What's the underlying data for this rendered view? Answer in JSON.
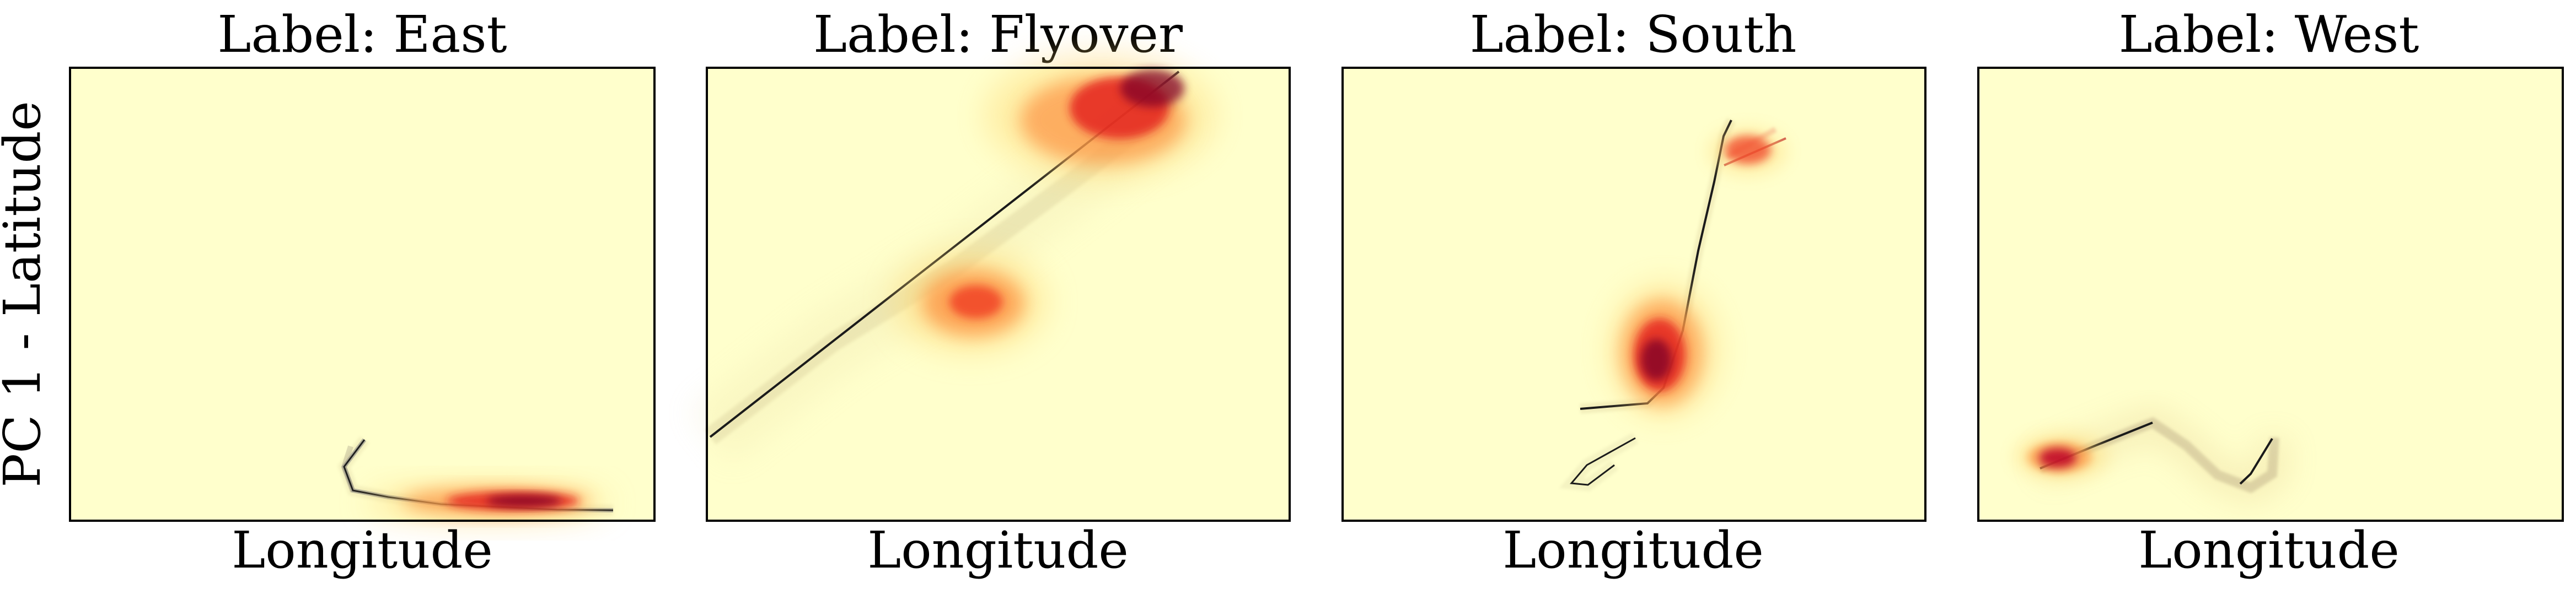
{
  "figure": {
    "ylabel": "PC 1 - Latitude"
  },
  "chart_data": [
    {
      "type": "heatmap",
      "title": "Label: East",
      "xlabel": "Longitude",
      "ylabel": "PC 1 - Latitude",
      "xticks": [],
      "yticks": [],
      "colormap": [
        "#ffffcc",
        "#ffeda0",
        "#feb24c",
        "#fc4e2a",
        "#bd0026",
        "#800026"
      ],
      "frame_color": "#000000",
      "centerline_color": "#000000"
    },
    {
      "type": "heatmap",
      "title": "Label: Flyover",
      "xlabel": "Longitude",
      "xticks": [],
      "yticks": [],
      "colormap": [
        "#ffffcc",
        "#ffeda0",
        "#feb24c",
        "#fc4e2a",
        "#bd0026",
        "#800026"
      ],
      "frame_color": "#000000",
      "centerline_color": "#000000"
    },
    {
      "type": "heatmap",
      "title": "Label: South",
      "xlabel": "Longitude",
      "xticks": [],
      "yticks": [],
      "colormap": [
        "#ffffcc",
        "#ffeda0",
        "#feb24c",
        "#fc4e2a",
        "#bd0026",
        "#800026"
      ],
      "frame_color": "#000000",
      "centerline_color": "#000000"
    },
    {
      "type": "heatmap",
      "title": "Label: West",
      "xlabel": "Longitude",
      "xticks": [],
      "yticks": [],
      "colormap": [
        "#ffffcc",
        "#ffeda0",
        "#feb24c",
        "#fc4e2a",
        "#bd0026",
        "#800026"
      ],
      "frame_color": "#000000",
      "centerline_color": "#000000"
    }
  ]
}
